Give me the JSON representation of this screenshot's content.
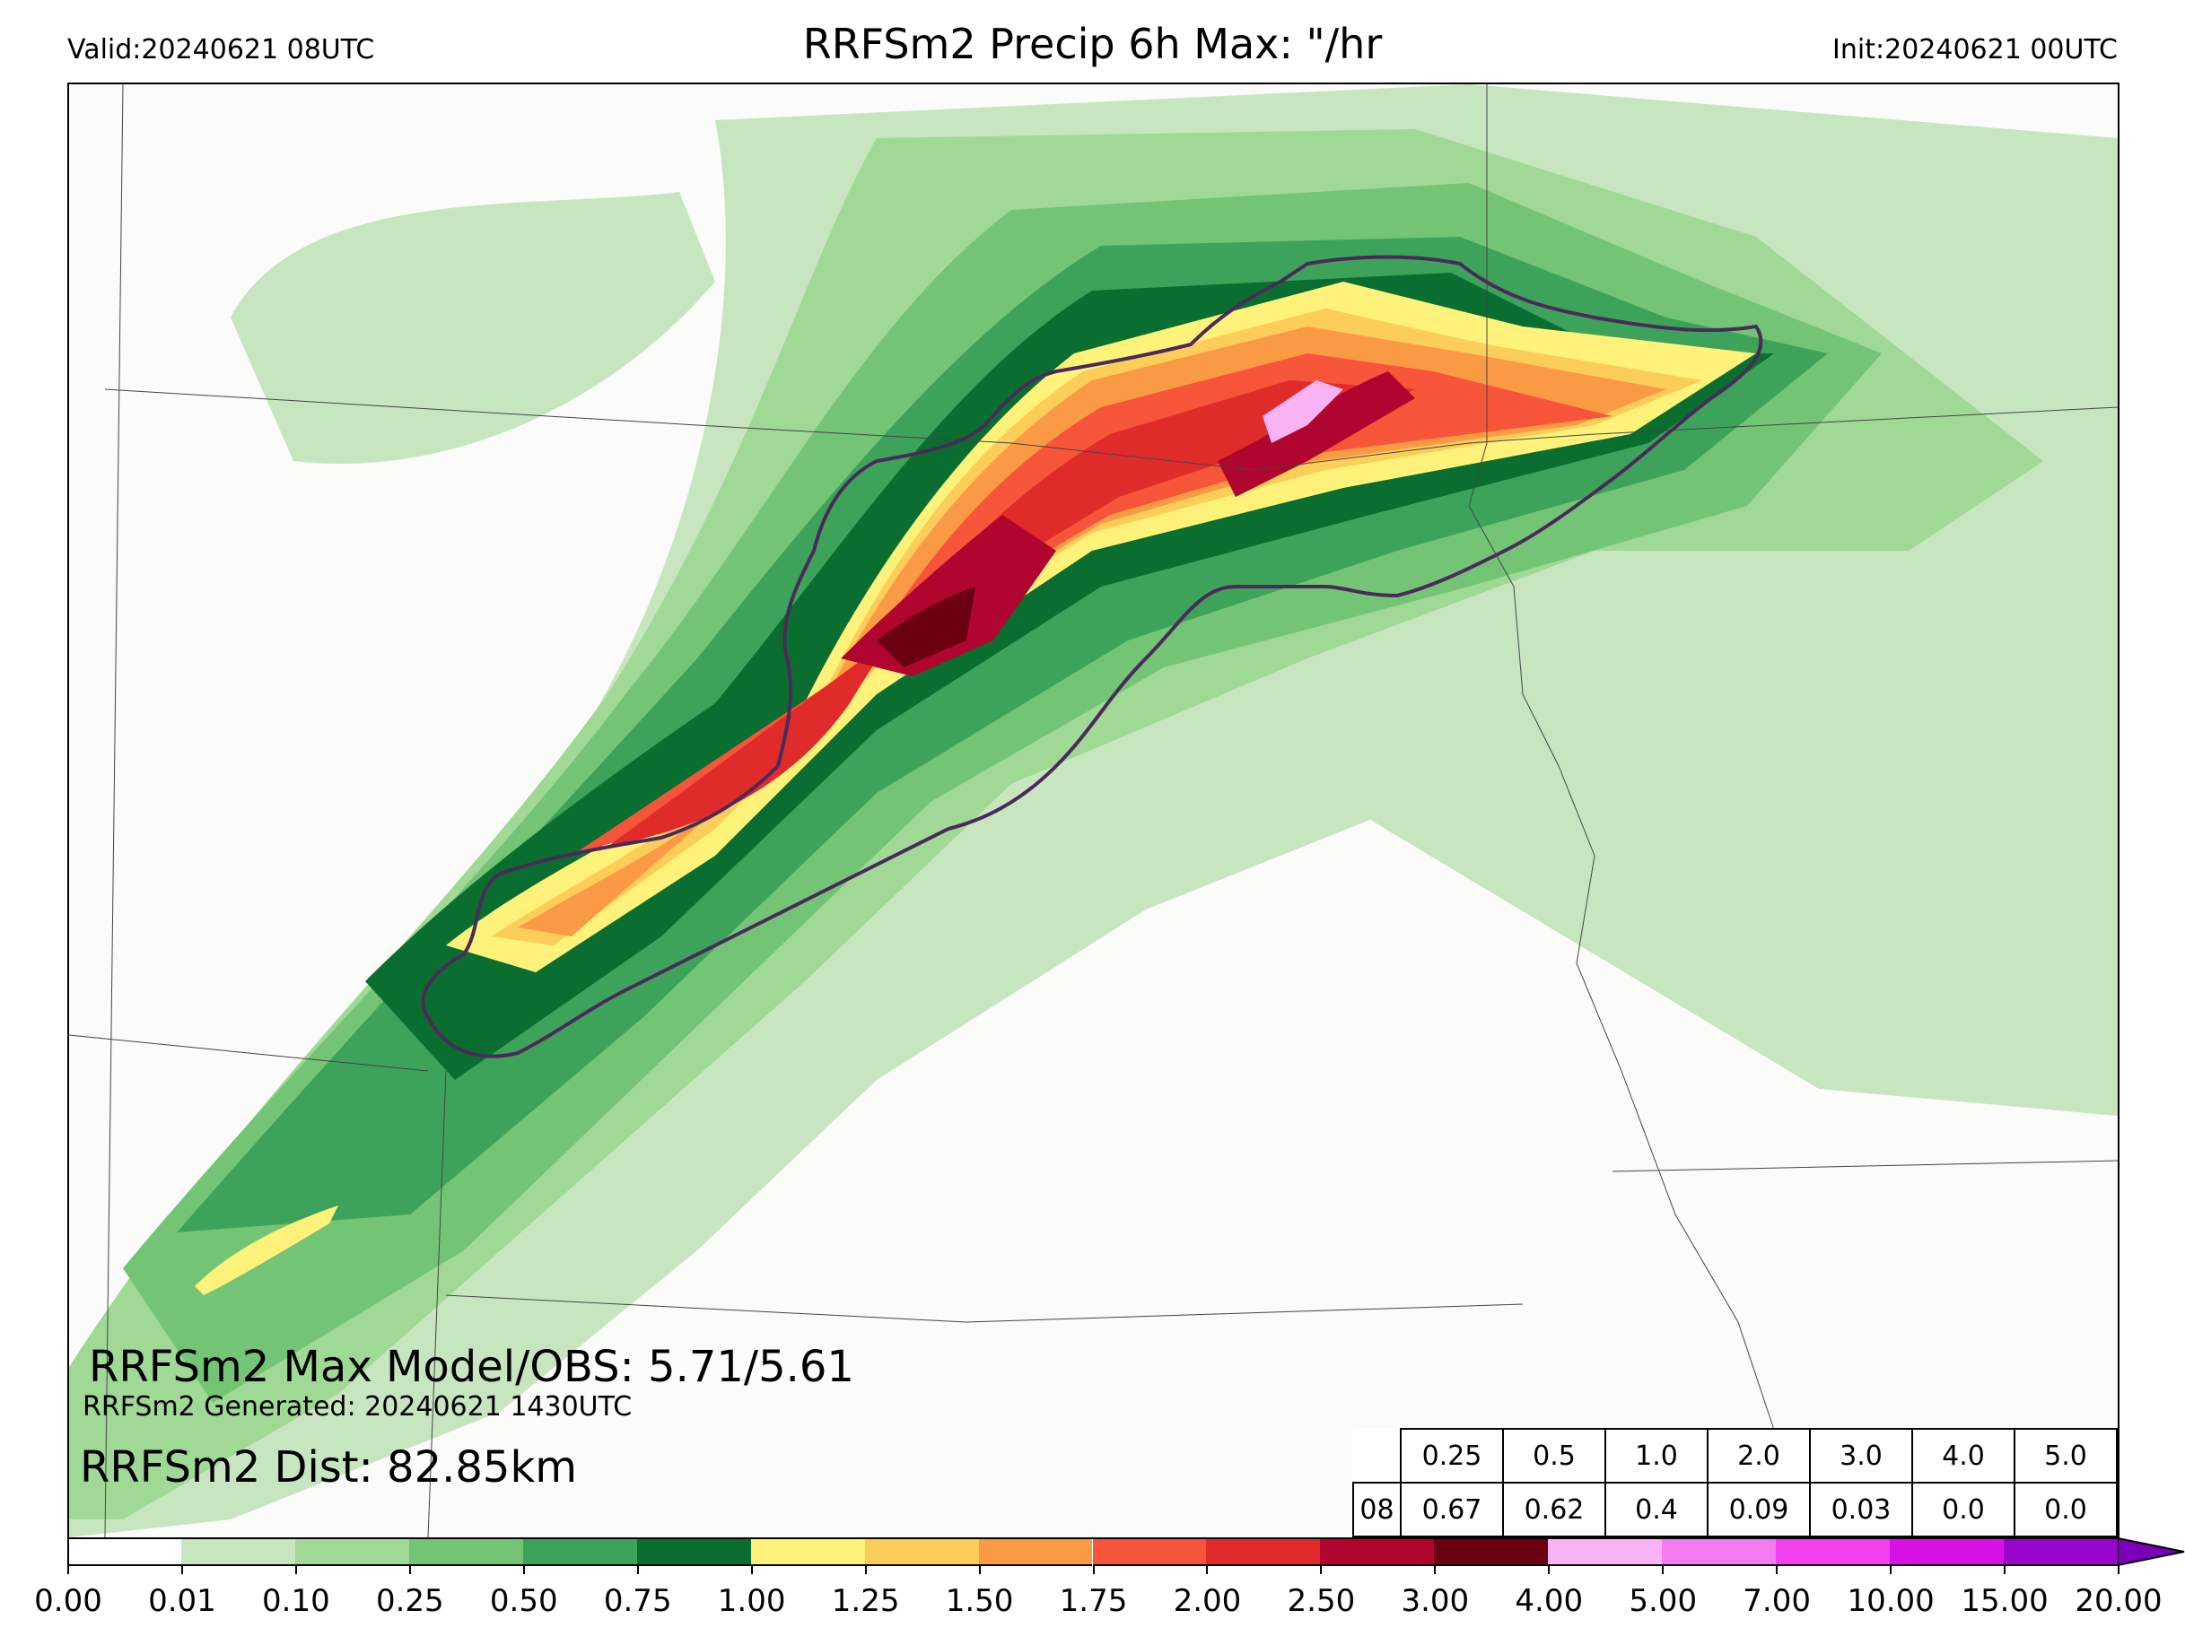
{
  "header": {
    "valid": "Valid:20240621 08UTC",
    "title": "RRFSm2 Precip 6h Max: \"/hr",
    "init": "Init:20240621 00UTC"
  },
  "stats": {
    "max": "RRFSm2 Max Model/OBS: 5.71/5.61",
    "generated": "RRFSm2 Generated: 20240621 1430UTC",
    "dist": "RRFSm2 Dist: 82.85km"
  },
  "verification_table": {
    "hour": "08",
    "thresholds": [
      "0.25",
      "0.5",
      "1.0",
      "2.0",
      "3.0",
      "4.0",
      "5.0"
    ],
    "scores": [
      "0.67",
      "0.62",
      "0.4",
      "0.09",
      "0.03",
      "0.0",
      "0.0"
    ]
  },
  "colorbar": {
    "labels": [
      "0.00",
      "0.01",
      "0.10",
      "0.25",
      "0.50",
      "0.75",
      "1.00",
      "1.25",
      "1.50",
      "1.75",
      "2.00",
      "2.50",
      "3.00",
      "4.00",
      "5.00",
      "7.00",
      "10.00",
      "15.00",
      "20.00"
    ],
    "colors": [
      "#ffffff",
      "#c7e6c0",
      "#9fd995",
      "#74c476",
      "#3ea35a",
      "#0a6e30",
      "#fff27a",
      "#fdcd5a",
      "#fb9a45",
      "#f7553a",
      "#e02b2b",
      "#b0052e",
      "#6b0010",
      "#f8b3f4",
      "#f27cf0",
      "#f240ee",
      "#d812e6",
      "#9a06cc"
    ],
    "extend_color": "#7a00b8"
  }
}
